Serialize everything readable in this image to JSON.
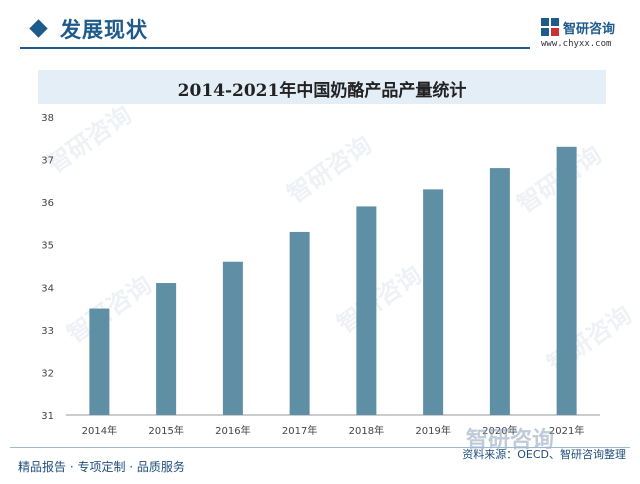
{
  "header": {
    "section_title": "发展现状",
    "brand_name": "智研咨询",
    "brand_url": "www.chyxx.com"
  },
  "chart_data": {
    "type": "bar",
    "title": "2014-2021年中国奶酪产品产量统计",
    "categories": [
      "2014年",
      "2015年",
      "2016年",
      "2017年",
      "2018年",
      "2019年",
      "2020年",
      "2021年"
    ],
    "values": [
      33.5,
      34.1,
      34.6,
      35.3,
      35.9,
      36.3,
      36.8,
      37.3
    ],
    "ylim": [
      31,
      38
    ],
    "yticks": [
      31,
      32,
      33,
      34,
      35,
      36,
      37,
      38
    ],
    "xlabel": "",
    "ylabel": "",
    "grid": false,
    "bar_color": "#5f8fa4"
  },
  "footer": {
    "left": "精品报告 · 专项定制 · 品质服务",
    "right": "资料来源：OECD、智研咨询整理"
  },
  "watermark": {
    "text": "智研咨询"
  },
  "colors": {
    "accent": "#1f5a8c",
    "title_bar": "#e4eef7",
    "bar": "#5f8fa4"
  }
}
